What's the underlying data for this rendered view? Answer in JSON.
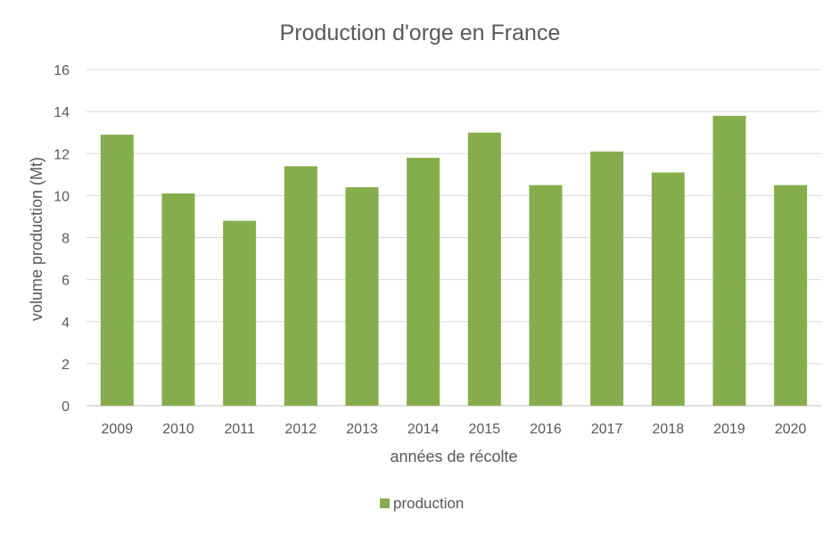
{
  "chart_data": {
    "type": "bar",
    "title": "Production d'orge en France",
    "xlabel": "années de récolte",
    "ylabel": "volume production (Mt)",
    "ylim": [
      0,
      16
    ],
    "yticks": [
      0,
      2,
      4,
      6,
      8,
      10,
      12,
      14,
      16
    ],
    "grid": true,
    "legend_position": "bottom",
    "categories": [
      "2009",
      "2010",
      "2011",
      "2012",
      "2013",
      "2014",
      "2015",
      "2016",
      "2017",
      "2018",
      "2019",
      "2020"
    ],
    "series": [
      {
        "name": "production",
        "color": "#86AD4C",
        "values": [
          12.9,
          10.1,
          8.8,
          11.4,
          10.4,
          11.8,
          13.0,
          10.5,
          12.1,
          11.1,
          13.8,
          10.5
        ]
      }
    ]
  },
  "colors": {
    "text": "#595959",
    "title": "#595959",
    "grid": "#D9D9D9",
    "axis": "#BFBFBF"
  }
}
